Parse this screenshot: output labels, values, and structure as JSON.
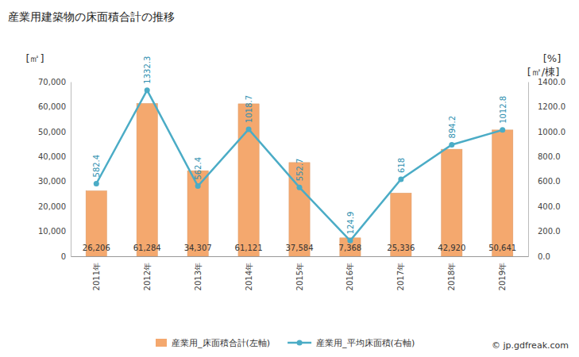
{
  "chart_data": {
    "type": "bar",
    "title": "産業用建築物の床面積合計の推移",
    "y_label": "[㎡]",
    "y2_labels": [
      "[%]",
      "[㎡/棟]"
    ],
    "source": "© jp.gdfreak.com",
    "categories": [
      "2011年",
      "2012年",
      "2013年",
      "2014年",
      "2015年",
      "2016年",
      "2017年",
      "2018年",
      "2019年"
    ],
    "series": [
      {
        "name": "産業用_床面積合計(左軸)",
        "type": "bar",
        "color": "#f4a86e",
        "values": [
          26206,
          61284,
          34307,
          61121,
          37584,
          7368,
          25336,
          42920,
          50641
        ],
        "value_labels": [
          "26,206",
          "61,284",
          "34,307",
          "61,121",
          "37,584",
          "7,368",
          "25,336",
          "42,920",
          "50,641"
        ]
      },
      {
        "name": "産業用_平均床面積(右軸)",
        "type": "line",
        "axis": "y2",
        "color": "#4bacc6",
        "marker": "circle",
        "values": [
          582.4,
          1332.3,
          562.4,
          1018.7,
          552.7,
          124.9,
          618,
          894.2,
          1012.8
        ]
      }
    ],
    "ylim": [
      0,
      70000
    ],
    "yticks": [
      0,
      {
        "value": 10000,
        "label": "10,000"
      },
      {
        "value": 20000,
        "label": "20,000"
      },
      {
        "value": 30000,
        "label": "30,000"
      },
      {
        "value": 40000,
        "label": "40,000"
      },
      {
        "value": 50000,
        "label": "50,000"
      },
      {
        "value": 60000,
        "label": "60,000"
      },
      {
        "value": 70000,
        "label": "70,000"
      }
    ],
    "y2lim": [
      0,
      1400
    ],
    "y2ticks": [
      {
        "value": 0,
        "label": "0.0"
      },
      {
        "value": 200,
        "label": "200.0"
      },
      {
        "value": 400,
        "label": "400.0"
      },
      {
        "value": 600,
        "label": "600.0"
      },
      {
        "value": 800,
        "label": "800.0"
      },
      {
        "value": 1000,
        "label": "1000.0"
      },
      {
        "value": 1200,
        "label": "1200.0"
      },
      {
        "value": 1400,
        "label": "1400.0"
      }
    ],
    "grid": false,
    "data_labels": true,
    "legend": "bottom"
  }
}
